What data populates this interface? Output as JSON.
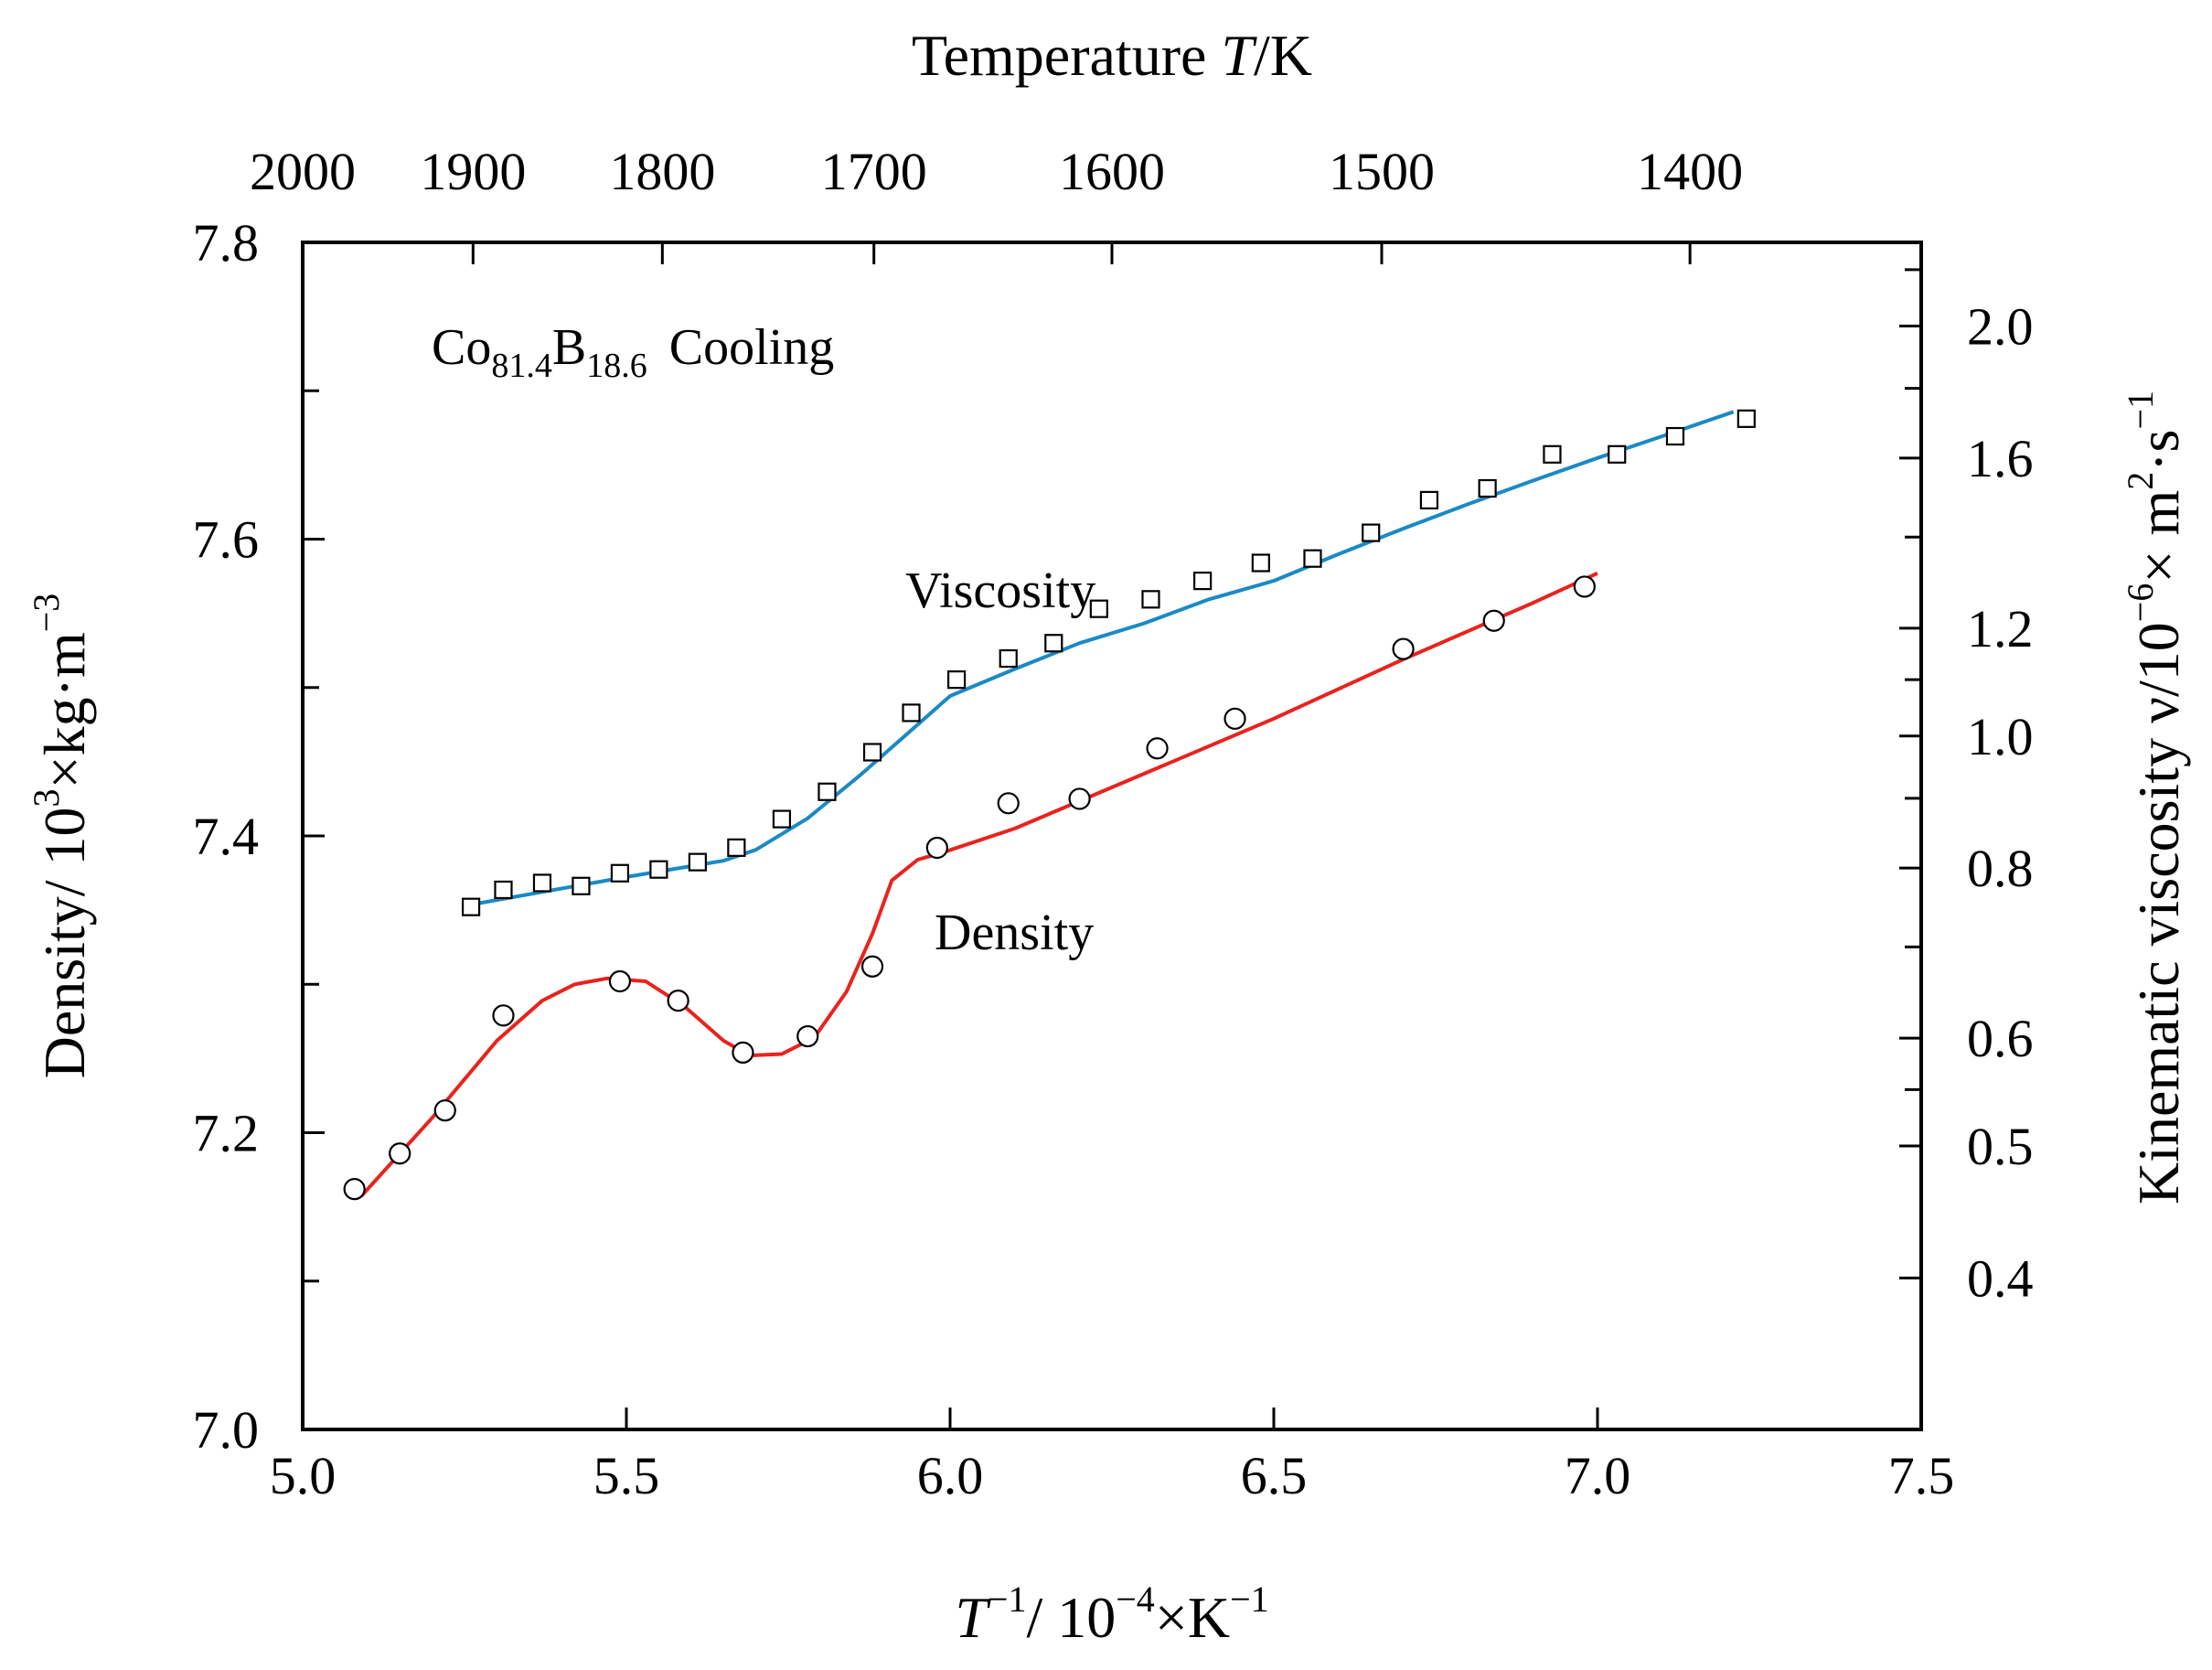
{
  "chart_data": {
    "type": "scatter",
    "annotation": {
      "compound_base1": "Co",
      "compound_sub1": "81.4",
      "compound_base2": "B",
      "compound_sub2": "18.6",
      "mode": "Cooling"
    },
    "axes": {
      "x_bottom": {
        "label_T": "T",
        "label_sup1": "−1",
        "label_mid": "/ 10",
        "label_sup2": "−4",
        "label_unit": "×K",
        "label_sup3": "−1",
        "range": [
          5.0,
          7.5
        ],
        "ticks": [
          5.0,
          5.5,
          6.0,
          6.5,
          7.0,
          7.5
        ],
        "tick_labels": [
          "5.0",
          "5.5",
          "6.0",
          "6.5",
          "7.0",
          "7.5"
        ]
      },
      "x_top": {
        "label_text": "Temperature ",
        "label_T": "T",
        "label_unit": "/K",
        "ticks": [
          2000,
          1900,
          1800,
          1700,
          1600,
          1500,
          1400
        ],
        "tick_labels": [
          "2000",
          "1900",
          "1800",
          "1700",
          "1600",
          "1500",
          "1400"
        ]
      },
      "y_left": {
        "label_main": "Density/ 10",
        "label_sup1": "3",
        "label_unit": "×kg·m",
        "label_sup2": "−3",
        "range": [
          7.0,
          7.8
        ],
        "major_ticks": [
          7.0,
          7.2,
          7.4,
          7.6,
          7.8
        ],
        "tick_labels": [
          "7.0",
          "7.2",
          "7.4",
          "7.6",
          "7.8"
        ],
        "minor_ticks": [
          7.1,
          7.3,
          7.5,
          7.7
        ]
      },
      "y_right": {
        "label_main": "Kinematic viscosity ν/10",
        "label_sup1": "−6",
        "label_unit": "× m",
        "label_sup2": "2",
        "label_unit2": "·s",
        "label_sup3": "−1",
        "scale": "log",
        "range": [
          0.3096,
          2.3041
        ],
        "ticks": [
          0.4,
          0.5,
          0.6,
          0.8,
          1.0,
          1.2,
          1.6,
          2.0
        ],
        "tick_labels": [
          "0.4",
          "0.5",
          "0.6",
          "0.8",
          "1.0",
          "1.2",
          "1.6",
          "2.0"
        ],
        "minor_ticks": [
          0.55,
          0.7,
          0.9,
          1.1,
          1.4,
          1.8,
          2.2
        ]
      }
    },
    "series": [
      {
        "name": "Viscosity",
        "axis": "right",
        "marker": "square",
        "color": "#1a8ac4",
        "x": [
          5.26,
          5.31,
          5.37,
          5.43,
          5.49,
          5.55,
          5.61,
          5.67,
          5.74,
          5.81,
          5.88,
          5.94,
          6.01,
          6.09,
          6.16,
          6.23,
          6.31,
          6.39,
          6.48,
          6.56,
          6.65,
          6.74,
          6.83,
          6.93,
          7.03,
          7.12,
          7.23
        ],
        "y": [
          0.749,
          0.771,
          0.78,
          0.776,
          0.793,
          0.798,
          0.808,
          0.828,
          0.869,
          0.91,
          0.973,
          1.04,
          1.1,
          1.14,
          1.17,
          1.24,
          1.26,
          1.3,
          1.34,
          1.35,
          1.41,
          1.49,
          1.52,
          1.61,
          1.61,
          1.66,
          1.71
        ],
        "fit_x": [
          5.26,
          5.5,
          5.65,
          5.7,
          5.78,
          5.86,
          5.93,
          6.0,
          6.1,
          6.2,
          6.3,
          6.4,
          6.5,
          6.6,
          6.7,
          6.8,
          6.9,
          7.0,
          7.1,
          7.21
        ],
        "fit_y": [
          0.752,
          0.788,
          0.81,
          0.825,
          0.87,
          0.935,
          1.0,
          1.07,
          1.12,
          1.17,
          1.21,
          1.26,
          1.3,
          1.36,
          1.42,
          1.48,
          1.54,
          1.6,
          1.66,
          1.73
        ]
      },
      {
        "name": "Density",
        "axis": "left",
        "marker": "circle",
        "color": "#e8231e",
        "x": [
          5.08,
          5.15,
          5.22,
          5.31,
          5.49,
          5.58,
          5.68,
          5.78,
          5.88,
          5.98,
          6.09,
          6.2,
          6.32,
          6.44,
          6.7,
          6.84,
          6.98
        ],
        "y": [
          7.162,
          7.186,
          7.215,
          7.279,
          7.302,
          7.289,
          7.254,
          7.265,
          7.312,
          7.392,
          7.422,
          7.425,
          7.459,
          7.479,
          7.526,
          7.545,
          7.568
        ],
        "fit_x": [
          5.09,
          5.2,
          5.3,
          5.37,
          5.42,
          5.47,
          5.53,
          5.59,
          5.65,
          5.69,
          5.74,
          5.79,
          5.84,
          5.88,
          5.91,
          5.95,
          5.99,
          6.1,
          6.3,
          6.5,
          6.7,
          6.9,
          7.0
        ],
        "fit_y": [
          7.157,
          7.21,
          7.262,
          7.289,
          7.3,
          7.304,
          7.302,
          7.285,
          7.262,
          7.252,
          7.253,
          7.264,
          7.295,
          7.334,
          7.37,
          7.384,
          7.389,
          7.405,
          7.442,
          7.479,
          7.519,
          7.557,
          7.577
        ]
      }
    ],
    "series_labels": [
      "Viscosity",
      "Density"
    ]
  }
}
